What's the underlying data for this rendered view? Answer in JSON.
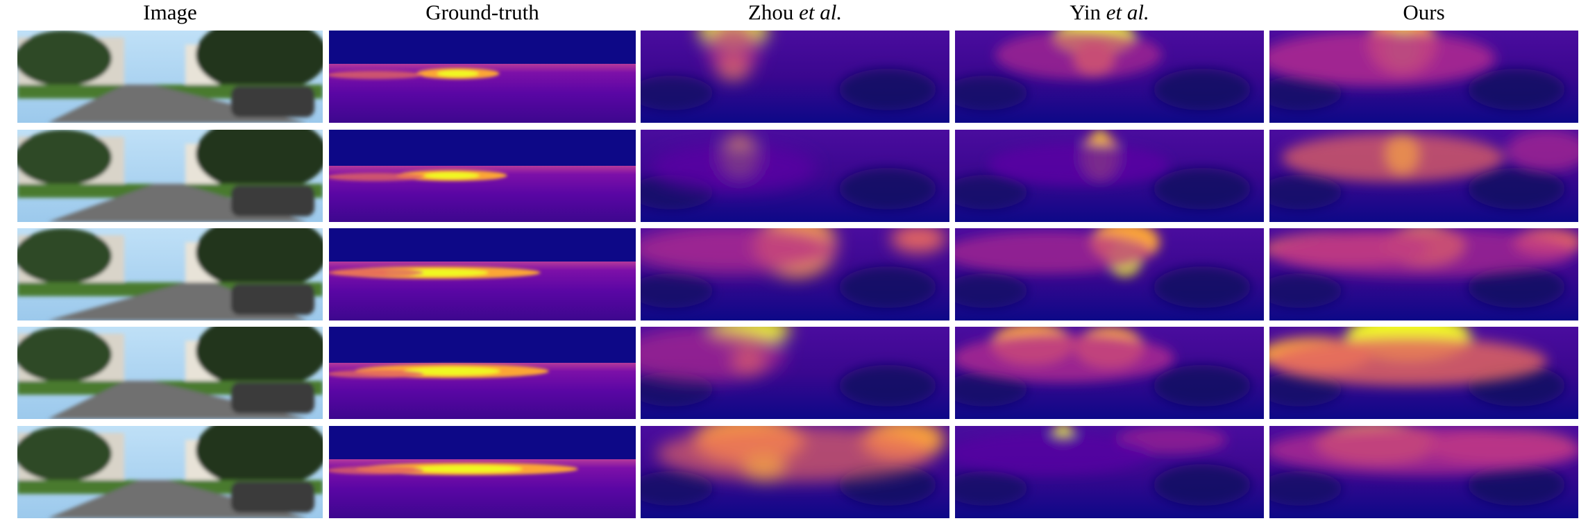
{
  "columns": [
    {
      "key": "image",
      "label": "Image",
      "suffix": ""
    },
    {
      "key": "gt",
      "label": "Ground-truth",
      "suffix": ""
    },
    {
      "key": "zhou",
      "label": "Zhou ",
      "suffix": "et al."
    },
    {
      "key": "yin",
      "label": "Yin ",
      "suffix": "et al."
    },
    {
      "key": "ours",
      "label": "Ours",
      "suffix": ""
    }
  ],
  "colors": {
    "depth_far": "#0d0887",
    "depth_mid1": "#5a06a4",
    "depth_mid2": "#b12a90",
    "depth_mid3": "#e16462",
    "depth_mid4": "#fca636",
    "depth_near": "#f0f921",
    "sky": "#9cc9ec",
    "road": "#6f6f6f",
    "grass": "#4a7a2e",
    "building": "#d9d4c9",
    "tree": "#24361f"
  }
}
